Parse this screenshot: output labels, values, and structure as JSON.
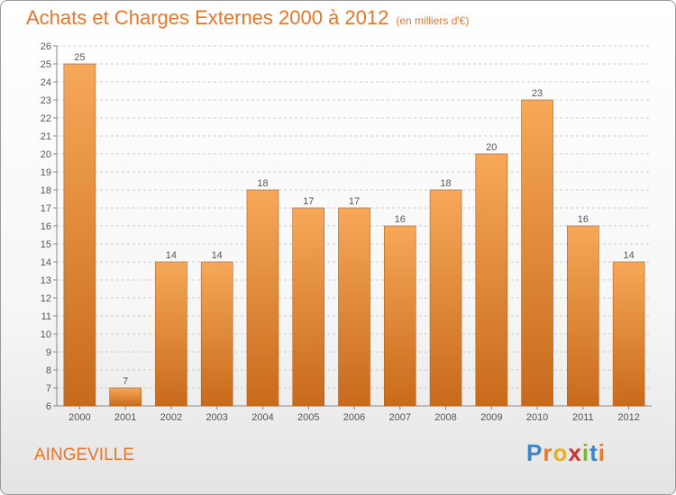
{
  "header": {
    "title": "Achats et Charges Externes 2000 à 2012",
    "subtitle": "(en milliers d'€)"
  },
  "footer": {
    "commune": "AINGEVILLE",
    "logo_letters": [
      "P",
      "r",
      "o",
      "x",
      "i",
      "t",
      "i"
    ],
    "logo_colors": [
      "#3a86c8",
      "#e87a2a",
      "#e8b020",
      "#d03030",
      "#7ab830",
      "#3a86c8",
      "#e87a2a"
    ]
  },
  "colors": {
    "bar_top": "#f6a858",
    "bar_bottom": "#c86a1c",
    "grid": "#cccccc",
    "axis": "#888888"
  },
  "chart_data": {
    "type": "bar",
    "title": "Achats et Charges Externes 2000 à 2012",
    "subtitle": "(en milliers d'€)",
    "categories": [
      "2000",
      "2001",
      "2002",
      "2003",
      "2004",
      "2005",
      "2006",
      "2007",
      "2008",
      "2009",
      "2010",
      "2011",
      "2012"
    ],
    "values": [
      25,
      7,
      14,
      14,
      18,
      17,
      17,
      16,
      18,
      20,
      23,
      16,
      14
    ],
    "ylim": [
      6,
      26
    ],
    "yticks": [
      6,
      7,
      8,
      9,
      10,
      11,
      12,
      13,
      14,
      15,
      16,
      17,
      18,
      19,
      20,
      21,
      22,
      23,
      24,
      25,
      26
    ],
    "grid": true,
    "xlabel": "",
    "ylabel": ""
  }
}
